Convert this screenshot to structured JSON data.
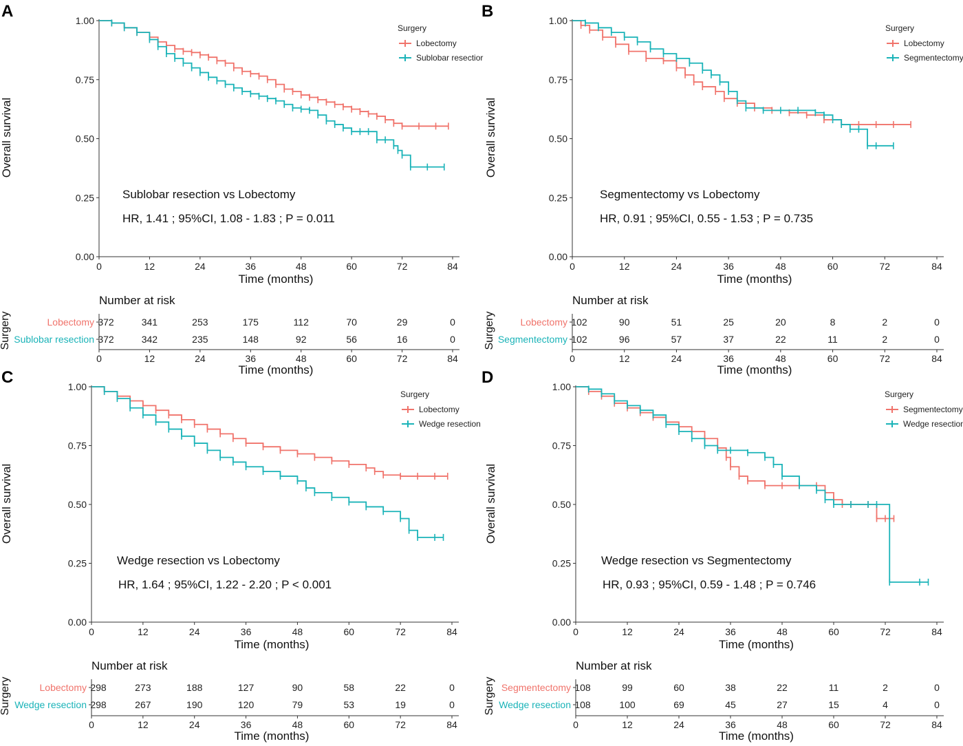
{
  "colors": {
    "red": "#F0736B",
    "teal": "#1AB3B8",
    "axis": "#333333"
  },
  "chart_data": [
    {
      "panel_label": "A",
      "type": "line",
      "step": true,
      "ylabel": "Overall survival",
      "xlabel": "Time (months)",
      "xlim": [
        0,
        84
      ],
      "ylim": [
        0,
        1
      ],
      "xticks": [
        "0",
        "12",
        "24",
        "36",
        "48",
        "60",
        "72",
        "84"
      ],
      "yticks": [
        "0.00",
        "0.25",
        "0.50",
        "0.75",
        "1.00"
      ],
      "legend_title": "Surgery",
      "title": "Sublobar resection vs Lobectomy",
      "subtitle": "HR, 1.41 ; 95%CI, 1.08 - 1.83 ; P = 0.011",
      "risk_title": "Number at risk",
      "risk_ylabel": "Surgery",
      "series": [
        {
          "name": "Lobectomy",
          "legend_label": "Lobectomy",
          "color_key": "red",
          "x": [
            0,
            3,
            6,
            9,
            12,
            14,
            16,
            18,
            20,
            22,
            24,
            26,
            28,
            30,
            32,
            34,
            36,
            38,
            40,
            42,
            44,
            46,
            48,
            50,
            52,
            54,
            56,
            58,
            60,
            62,
            64,
            66,
            68,
            70,
            72,
            76,
            80,
            83
          ],
          "y": [
            1,
            0.99,
            0.97,
            0.95,
            0.93,
            0.91,
            0.895,
            0.88,
            0.87,
            0.865,
            0.855,
            0.845,
            0.83,
            0.82,
            0.8,
            0.785,
            0.775,
            0.765,
            0.75,
            0.73,
            0.71,
            0.7,
            0.685,
            0.675,
            0.665,
            0.655,
            0.645,
            0.635,
            0.625,
            0.615,
            0.605,
            0.595,
            0.58,
            0.565,
            0.553,
            0.553,
            0.553,
            0.553
          ],
          "risk": [
            "372",
            "341",
            "253",
            "175",
            "112",
            "70",
            "29",
            "0"
          ]
        },
        {
          "name": "Sublobar resection",
          "legend_label": "Sublobar resectior",
          "color_key": "teal",
          "x": [
            0,
            3,
            6,
            9,
            12,
            14,
            16,
            18,
            20,
            22,
            24,
            26,
            28,
            30,
            32,
            34,
            36,
            38,
            40,
            42,
            44,
            46,
            48,
            50,
            52,
            54,
            56,
            58,
            60,
            62,
            64,
            66,
            68,
            70,
            71,
            72,
            74,
            78,
            82
          ],
          "y": [
            1,
            0.99,
            0.97,
            0.95,
            0.92,
            0.89,
            0.86,
            0.84,
            0.82,
            0.8,
            0.78,
            0.76,
            0.745,
            0.73,
            0.715,
            0.7,
            0.69,
            0.68,
            0.67,
            0.66,
            0.645,
            0.63,
            0.625,
            0.62,
            0.6,
            0.575,
            0.56,
            0.545,
            0.53,
            0.53,
            0.53,
            0.495,
            0.495,
            0.47,
            0.45,
            0.43,
            0.38,
            0.38,
            0.38
          ],
          "risk": [
            "372",
            "342",
            "235",
            "148",
            "92",
            "56",
            "16",
            "0"
          ]
        }
      ]
    },
    {
      "panel_label": "B",
      "type": "line",
      "step": true,
      "ylabel": "Overall survival",
      "xlabel": "Time (months)",
      "xlim": [
        0,
        84
      ],
      "ylim": [
        0,
        1
      ],
      "xticks": [
        "0",
        "12",
        "24",
        "36",
        "48",
        "60",
        "72",
        "84"
      ],
      "yticks": [
        "0.00",
        "0.25",
        "0.50",
        "0.75",
        "1.00"
      ],
      "legend_title": "Surgery",
      "title": "Segmentectomy vs Lobectomy",
      "subtitle": "HR, 0.91 ; 95%CI, 0.55 - 1.53 ; P = 0.735",
      "risk_title": "Number at risk",
      "risk_ylabel": "Surgery",
      "series": [
        {
          "name": "Lobectomy",
          "legend_label": "Lobectomy",
          "color_key": "red",
          "x": [
            0,
            2,
            4,
            7,
            10,
            13,
            17,
            21,
            24,
            26,
            28,
            30,
            33,
            35,
            38,
            42,
            46,
            50,
            54,
            58,
            62,
            66,
            70,
            74,
            78
          ],
          "y": [
            1,
            0.98,
            0.96,
            0.93,
            0.9,
            0.87,
            0.84,
            0.83,
            0.8,
            0.77,
            0.74,
            0.72,
            0.7,
            0.67,
            0.65,
            0.63,
            0.62,
            0.61,
            0.6,
            0.58,
            0.56,
            0.56,
            0.56,
            0.56,
            0.56
          ],
          "risk": [
            "102",
            "90",
            "51",
            "25",
            "20",
            "8",
            "2",
            "0"
          ]
        },
        {
          "name": "Segmentectomy",
          "legend_label": "Segmentectomy",
          "color_key": "teal",
          "x": [
            0,
            3,
            6,
            9,
            12,
            15,
            18,
            21,
            24,
            27,
            30,
            32,
            34,
            36,
            38,
            40,
            44,
            48,
            52,
            56,
            58,
            60,
            62,
            64,
            66,
            68,
            70,
            74
          ],
          "y": [
            1,
            0.99,
            0.97,
            0.95,
            0.93,
            0.91,
            0.88,
            0.86,
            0.84,
            0.82,
            0.79,
            0.77,
            0.74,
            0.7,
            0.66,
            0.63,
            0.62,
            0.62,
            0.62,
            0.61,
            0.6,
            0.58,
            0.56,
            0.54,
            0.54,
            0.47,
            0.47,
            0.47
          ],
          "risk": [
            "102",
            "96",
            "57",
            "37",
            "22",
            "11",
            "2",
            "0"
          ]
        }
      ]
    },
    {
      "panel_label": "C",
      "type": "line",
      "step": true,
      "ylabel": "Overall survival",
      "xlabel": "Time (months)",
      "xlim": [
        0,
        84
      ],
      "ylim": [
        0,
        1
      ],
      "xticks": [
        "0",
        "12",
        "24",
        "36",
        "48",
        "60",
        "72",
        "84"
      ],
      "yticks": [
        "0.00",
        "0.25",
        "0.50",
        "0.75",
        "1.00"
      ],
      "legend_title": "Surgery",
      "title": "Wedge resection vs Lobectomy",
      "subtitle": "HR, 1.64 ; 95%CI, 1.22 - 2.20 ; P < 0.001",
      "risk_title": "Number at risk",
      "risk_ylabel": "Surgery",
      "series": [
        {
          "name": "Lobectomy",
          "legend_label": "Lobectomy",
          "color_key": "red",
          "x": [
            0,
            3,
            6,
            9,
            12,
            15,
            18,
            21,
            24,
            27,
            30,
            33,
            36,
            40,
            44,
            48,
            52,
            56,
            60,
            64,
            66,
            68,
            72,
            76,
            80,
            83
          ],
          "y": [
            1,
            0.98,
            0.96,
            0.94,
            0.92,
            0.9,
            0.88,
            0.86,
            0.84,
            0.82,
            0.8,
            0.78,
            0.76,
            0.745,
            0.73,
            0.715,
            0.7,
            0.685,
            0.67,
            0.655,
            0.64,
            0.625,
            0.62,
            0.62,
            0.62,
            0.62
          ],
          "risk": [
            "298",
            "273",
            "188",
            "127",
            "90",
            "58",
            "22",
            "0"
          ]
        },
        {
          "name": "Wedge resection",
          "legend_label": "Wedge resection",
          "color_key": "teal",
          "x": [
            0,
            3,
            6,
            9,
            12,
            15,
            18,
            21,
            24,
            27,
            30,
            33,
            36,
            40,
            44,
            48,
            50,
            52,
            56,
            60,
            64,
            68,
            72,
            74,
            76,
            80,
            82
          ],
          "y": [
            1,
            0.98,
            0.95,
            0.91,
            0.88,
            0.85,
            0.82,
            0.79,
            0.76,
            0.73,
            0.7,
            0.68,
            0.66,
            0.64,
            0.62,
            0.6,
            0.57,
            0.55,
            0.53,
            0.51,
            0.49,
            0.47,
            0.44,
            0.39,
            0.36,
            0.36,
            0.36
          ],
          "risk": [
            "298",
            "267",
            "190",
            "120",
            "79",
            "53",
            "19",
            "0"
          ]
        }
      ]
    },
    {
      "panel_label": "D",
      "type": "line",
      "step": true,
      "ylabel": "Overall survival",
      "xlabel": "Time (months)",
      "xlim": [
        0,
        84
      ],
      "ylim": [
        0,
        1
      ],
      "xticks": [
        "0",
        "12",
        "24",
        "36",
        "48",
        "60",
        "72",
        "84"
      ],
      "yticks": [
        "0.00",
        "0.25",
        "0.50",
        "0.75",
        "1.00"
      ],
      "legend_title": "Surgery",
      "title": "Wedge resection vs Segmentectomy",
      "subtitle": "HR, 0.93 ; 95%CI, 0.59 - 1.48 ; P = 0.746",
      "risk_title": "Number at risk",
      "risk_ylabel": "Surgery",
      "series": [
        {
          "name": "Segmentectomy",
          "legend_label": "Segmentectomy",
          "color_key": "red",
          "x": [
            0,
            3,
            6,
            9,
            12,
            15,
            18,
            21,
            24,
            27,
            30,
            33,
            35,
            36,
            38,
            40,
            44,
            48,
            52,
            56,
            58,
            60,
            62,
            64,
            68,
            70,
            72,
            74
          ],
          "y": [
            1,
            0.98,
            0.96,
            0.93,
            0.91,
            0.89,
            0.87,
            0.85,
            0.83,
            0.81,
            0.78,
            0.74,
            0.7,
            0.66,
            0.62,
            0.6,
            0.58,
            0.58,
            0.58,
            0.58,
            0.55,
            0.52,
            0.5,
            0.5,
            0.5,
            0.44,
            0.44,
            0.44
          ],
          "risk": [
            "108",
            "99",
            "60",
            "38",
            "22",
            "11",
            "2",
            "0"
          ]
        },
        {
          "name": "Wedge resection",
          "legend_label": "Wedge resection",
          "color_key": "teal",
          "x": [
            0,
            3,
            6,
            9,
            12,
            15,
            18,
            21,
            24,
            27,
            30,
            33,
            36,
            40,
            44,
            46,
            48,
            52,
            56,
            58,
            60,
            64,
            68,
            70,
            73,
            80,
            82
          ],
          "y": [
            1,
            0.99,
            0.97,
            0.94,
            0.92,
            0.9,
            0.88,
            0.84,
            0.81,
            0.78,
            0.75,
            0.73,
            0.73,
            0.72,
            0.7,
            0.67,
            0.62,
            0.58,
            0.56,
            0.52,
            0.5,
            0.5,
            0.5,
            0.5,
            0.17,
            0.17,
            0.17
          ],
          "risk": [
            "108",
            "100",
            "69",
            "45",
            "27",
            "15",
            "4",
            "0"
          ]
        }
      ]
    }
  ]
}
